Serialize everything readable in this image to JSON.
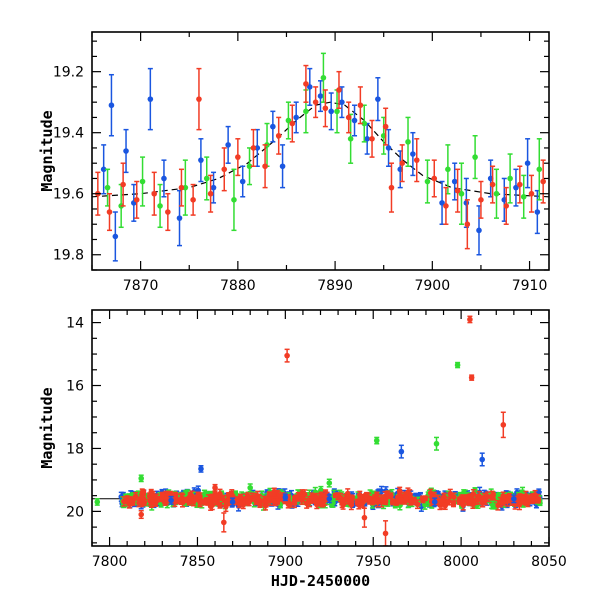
{
  "chart_data": [
    {
      "type": "scatter",
      "title": "",
      "xlabel": "",
      "ylabel": "Magnitude",
      "xlim": [
        7865,
        7912
      ],
      "ylim": [
        19.85,
        19.07
      ],
      "y_inverted": true,
      "xticks": [
        7870,
        7880,
        7890,
        7900,
        7910
      ],
      "yticks": [
        19.2,
        19.4,
        19.6,
        19.8
      ],
      "grid": false,
      "legend": "none",
      "colors": {
        "blue": "#1a56e0",
        "green": "#33dd33",
        "red": "#f23c25",
        "model": "#000000"
      },
      "model_curve": {
        "style": "dashed",
        "baseline": 19.615,
        "peak_time": 7889.5,
        "peak_magnitude": 19.3,
        "points": [
          [
            7865,
            19.61
          ],
          [
            7870,
            19.6
          ],
          [
            7875,
            19.58
          ],
          [
            7878,
            19.55
          ],
          [
            7881,
            19.5
          ],
          [
            7884,
            19.42
          ],
          [
            7886,
            19.36
          ],
          [
            7888,
            19.31
          ],
          [
            7889.5,
            19.3
          ],
          [
            7891,
            19.31
          ],
          [
            7893,
            19.36
          ],
          [
            7895,
            19.43
          ],
          [
            7897,
            19.49
          ],
          [
            7899,
            19.54
          ],
          [
            7902,
            19.58
          ],
          [
            7906,
            19.6
          ],
          [
            7912,
            19.61
          ]
        ]
      },
      "series": [
        {
          "color_key": "blue",
          "points": [
            [
              7866.2,
              19.52,
              0.08
            ],
            [
              7867.0,
              19.31,
              0.1
            ],
            [
              7867.4,
              19.74,
              0.08
            ],
            [
              7868.5,
              19.46,
              0.07
            ],
            [
              7869.3,
              19.63,
              0.06
            ],
            [
              7871.0,
              19.29,
              0.1
            ],
            [
              7872.4,
              19.55,
              0.06
            ],
            [
              7874.0,
              19.68,
              0.09
            ],
            [
              7876.2,
              19.49,
              0.07
            ],
            [
              7877.5,
              19.58,
              0.05
            ],
            [
              7879.0,
              19.44,
              0.06
            ],
            [
              7880.5,
              19.56,
              0.05
            ],
            [
              7882.0,
              19.45,
              0.06
            ],
            [
              7883.6,
              19.38,
              0.05
            ],
            [
              7884.6,
              19.51,
              0.07
            ],
            [
              7886.0,
              19.35,
              0.05
            ],
            [
              7887.4,
              19.25,
              0.06
            ],
            [
              7888.5,
              19.28,
              0.05
            ],
            [
              7889.6,
              19.33,
              0.06
            ],
            [
              7890.7,
              19.3,
              0.05
            ],
            [
              7892.0,
              19.36,
              0.05
            ],
            [
              7893.3,
              19.42,
              0.05
            ],
            [
              7894.4,
              19.29,
              0.07
            ],
            [
              7895.5,
              19.45,
              0.06
            ],
            [
              7896.7,
              19.52,
              0.06
            ],
            [
              7898.0,
              19.47,
              0.07
            ],
            [
              7901.0,
              19.63,
              0.07
            ],
            [
              7902.3,
              19.56,
              0.06
            ],
            [
              7903.5,
              19.63,
              0.08
            ],
            [
              7904.8,
              19.72,
              0.08
            ],
            [
              7906.0,
              19.55,
              0.06
            ],
            [
              7907.4,
              19.62,
              0.07
            ],
            [
              7908.6,
              19.58,
              0.06
            ],
            [
              7909.8,
              19.5,
              0.08
            ],
            [
              7910.8,
              19.66,
              0.07
            ]
          ]
        },
        {
          "color_key": "green",
          "points": [
            [
              7866.6,
              19.58,
              0.06
            ],
            [
              7868.0,
              19.64,
              0.07
            ],
            [
              7870.2,
              19.56,
              0.08
            ],
            [
              7872.0,
              19.64,
              0.07
            ],
            [
              7874.6,
              19.58,
              0.09
            ],
            [
              7876.8,
              19.55,
              0.07
            ],
            [
              7879.6,
              19.62,
              0.1
            ],
            [
              7881.2,
              19.51,
              0.06
            ],
            [
              7883.0,
              19.44,
              0.07
            ],
            [
              7885.2,
              19.36,
              0.06
            ],
            [
              7887.0,
              19.33,
              0.07
            ],
            [
              7888.8,
              19.22,
              0.08
            ],
            [
              7890.2,
              19.33,
              0.07
            ],
            [
              7891.6,
              19.42,
              0.08
            ],
            [
              7893.0,
              19.37,
              0.06
            ],
            [
              7895.0,
              19.41,
              0.06
            ],
            [
              7897.5,
              19.43,
              0.08
            ],
            [
              7899.5,
              19.56,
              0.07
            ],
            [
              7901.6,
              19.52,
              0.08
            ],
            [
              7903.0,
              19.6,
              0.1
            ],
            [
              7904.4,
              19.48,
              0.07
            ],
            [
              7906.6,
              19.6,
              0.08
            ],
            [
              7908.0,
              19.55,
              0.08
            ],
            [
              7909.4,
              19.61,
              0.07
            ],
            [
              7911.0,
              19.52,
              0.1
            ]
          ]
        },
        {
          "color_key": "red",
          "points": [
            [
              7865.6,
              19.6,
              0.07
            ],
            [
              7866.8,
              19.66,
              0.06
            ],
            [
              7868.2,
              19.57,
              0.07
            ],
            [
              7869.6,
              19.62,
              0.06
            ],
            [
              7871.4,
              19.6,
              0.07
            ],
            [
              7872.8,
              19.66,
              0.06
            ],
            [
              7874.2,
              19.58,
              0.06
            ],
            [
              7875.4,
              19.62,
              0.05
            ],
            [
              7876.0,
              19.29,
              0.1
            ],
            [
              7877.2,
              19.6,
              0.06
            ],
            [
              7878.6,
              19.52,
              0.07
            ],
            [
              7880.0,
              19.48,
              0.06
            ],
            [
              7881.6,
              19.45,
              0.06
            ],
            [
              7882.8,
              19.51,
              0.07
            ],
            [
              7884.2,
              19.41,
              0.06
            ],
            [
              7885.6,
              19.37,
              0.06
            ],
            [
              7887.0,
              19.24,
              0.06
            ],
            [
              7888.0,
              19.3,
              0.05
            ],
            [
              7889.0,
              19.32,
              0.06
            ],
            [
              7890.4,
              19.26,
              0.06
            ],
            [
              7891.4,
              19.35,
              0.05
            ],
            [
              7892.6,
              19.31,
              0.06
            ],
            [
              7893.8,
              19.42,
              0.06
            ],
            [
              7895.2,
              19.38,
              0.06
            ],
            [
              7895.8,
              19.58,
              0.08
            ],
            [
              7896.9,
              19.5,
              0.06
            ],
            [
              7898.4,
              19.49,
              0.07
            ],
            [
              7900.2,
              19.55,
              0.06
            ],
            [
              7901.4,
              19.64,
              0.06
            ],
            [
              7902.6,
              19.59,
              0.07
            ],
            [
              7903.6,
              19.7,
              0.08
            ],
            [
              7905.0,
              19.62,
              0.06
            ],
            [
              7906.2,
              19.57,
              0.06
            ],
            [
              7907.6,
              19.64,
              0.06
            ],
            [
              7909.0,
              19.57,
              0.06
            ],
            [
              7910.2,
              19.6,
              0.06
            ],
            [
              7911.4,
              19.56,
              0.07
            ]
          ]
        }
      ]
    },
    {
      "type": "scatter",
      "title": "",
      "xlabel": "HJD-2450000",
      "ylabel": "Magnitude",
      "xlim": [
        7790,
        8050
      ],
      "ylim": [
        21.1,
        13.6
      ],
      "y_inverted": true,
      "xticks": [
        7800,
        7850,
        7900,
        7950,
        8000,
        8050
      ],
      "yticks": [
        14,
        16,
        18,
        20
      ],
      "grid": false,
      "legend": "none",
      "colors": {
        "blue": "#1a56e0",
        "green": "#33dd33",
        "red": "#f23c25"
      },
      "baseline_line": 19.6,
      "series": [
        {
          "color_key": "blue",
          "points": [
            [
              7835,
              19.65,
              0.12
            ],
            [
              7852,
              18.65,
              0.1
            ],
            [
              7870,
              19.7,
              0.12
            ],
            [
              7900,
              19.55,
              0.1
            ],
            [
              7925,
              19.6,
              0.12
            ],
            [
              7966,
              18.1,
              0.2
            ],
            [
              7985,
              19.7,
              0.12
            ],
            [
              8012,
              18.35,
              0.2
            ],
            [
              8030,
              19.6,
              0.12
            ]
          ]
        },
        {
          "color_key": "green",
          "points": [
            [
              7793,
              19.7,
              0.1
            ],
            [
              7818,
              18.95,
              0.1
            ],
            [
              7880,
              19.25,
              0.12
            ],
            [
              7925,
              19.1,
              0.12
            ],
            [
              7952,
              17.75,
              0.1
            ],
            [
              7986,
              17.85,
              0.2
            ],
            [
              7998,
              15.35,
              0.08
            ],
            [
              8018,
              19.8,
              0.12
            ]
          ]
        },
        {
          "color_key": "red",
          "points": [
            [
              7818,
              20.1,
              0.12
            ],
            [
              7860,
              19.25,
              0.1
            ],
            [
              7865,
              20.35,
              0.3
            ],
            [
              7901,
              15.05,
              0.2
            ],
            [
              7945,
              20.2,
              0.3
            ],
            [
              7957,
              20.7,
              0.4
            ],
            [
              8005,
              13.9,
              0.1
            ],
            [
              8006,
              15.75,
              0.08
            ],
            [
              8024,
              17.25,
              0.4
            ]
          ]
        }
      ],
      "dense_band": {
        "x_range": [
          7806,
          8045
        ],
        "center": 19.6,
        "half_width": 0.3,
        "points_per_series": 330,
        "seed": 7
      }
    }
  ]
}
